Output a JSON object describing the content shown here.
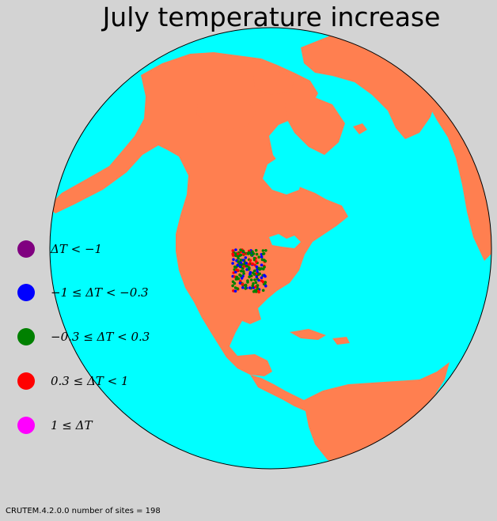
{
  "title": "July temperature increase",
  "footer": "CRUTEM.4.2.0.0 number of sites = 198",
  "map": {
    "projection": "orthographic",
    "ocean_color": "#00ffff",
    "land_color": "#ff7f50",
    "background_color": "#d3d3d3"
  },
  "legend": [
    {
      "label": "ΔT < −1",
      "color": "#800080"
    },
    {
      "label": "−1 ≤ ΔT < −0.3",
      "color": "#0000ff"
    },
    {
      "label": "−0.3 ≤ ΔT < 0.3",
      "color": "#008000"
    },
    {
      "label": "0.3 ≤ ΔT < 1",
      "color": "#ff0000"
    },
    {
      "label": "1 ≤ ΔT",
      "color": "#ff00ff"
    }
  ],
  "sites": {
    "count": 198,
    "color_counts": {
      "#008000": 110,
      "#0000ff": 50,
      "#ff0000": 38
    }
  }
}
